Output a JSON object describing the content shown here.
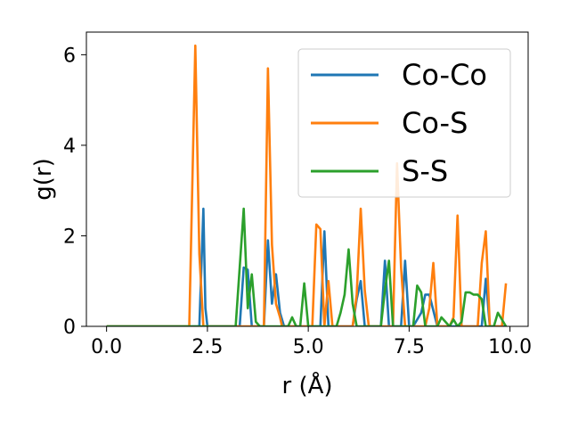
{
  "chart_data": {
    "type": "line",
    "xlabel": "r (Å)",
    "ylabel": "g(r)",
    "xlim": [
      -0.5,
      10.45
    ],
    "ylim": [
      0,
      6.5
    ],
    "xticks": [
      0.0,
      2.5,
      5.0,
      7.5,
      10.0
    ],
    "xtick_labels": [
      "0.0",
      "2.5",
      "5.0",
      "7.5",
      "10.0"
    ],
    "yticks": [
      0,
      2,
      4,
      6
    ],
    "ytick_labels": [
      "0",
      "2",
      "4",
      "6"
    ],
    "grid": false,
    "legend_position": "top-right",
    "series": [
      {
        "name": "Co-Co",
        "color": "#1f77b4",
        "x": [
          0.0,
          2.25,
          2.3,
          2.4,
          2.45,
          2.5,
          3.3,
          3.4,
          3.5,
          3.6,
          3.9,
          4.0,
          4.1,
          4.2,
          4.3,
          4.4,
          5.3,
          5.4,
          5.5,
          6.1,
          6.2,
          6.3,
          6.4,
          6.8,
          6.9,
          7.0,
          7.3,
          7.4,
          7.5,
          7.6,
          7.8,
          7.9,
          8.0,
          8.1,
          8.2,
          9.3,
          9.4,
          9.5,
          9.9
        ],
        "y": [
          0,
          0,
          0,
          2.6,
          0.4,
          0,
          0,
          1.3,
          1.25,
          0,
          0,
          1.9,
          0.5,
          1.15,
          0.3,
          0,
          0,
          2.1,
          0,
          0,
          0.6,
          1.0,
          0,
          0,
          1.45,
          0,
          0,
          1.45,
          0,
          0,
          0.3,
          0.7,
          0.7,
          0.35,
          0,
          0,
          1.05,
          0,
          0
        ]
      },
      {
        "name": "Co-S",
        "color": "#ff7f0e",
        "x": [
          0.0,
          1.95,
          2.05,
          2.2,
          2.3,
          2.4,
          3.7,
          3.9,
          4.0,
          4.1,
          4.2,
          4.3,
          4.35,
          5.1,
          5.2,
          5.3,
          5.4,
          5.5,
          5.6,
          6.1,
          6.2,
          6.3,
          6.4,
          6.5,
          7.1,
          7.2,
          7.3,
          7.4,
          7.9,
          8.0,
          8.1,
          8.2,
          8.5,
          8.6,
          8.7,
          8.8,
          9.2,
          9.3,
          9.4,
          9.5,
          9.8,
          9.9
        ],
        "y": [
          0,
          0,
          0,
          6.2,
          1.6,
          0,
          0,
          0,
          5.7,
          1.8,
          0.5,
          0.2,
          0,
          0,
          2.25,
          2.15,
          0,
          1.0,
          0,
          0,
          0.7,
          2.6,
          0.8,
          0,
          0,
          3.6,
          1.3,
          0,
          0,
          0.4,
          1.4,
          0,
          0,
          0.2,
          2.45,
          0,
          0,
          1.4,
          2.1,
          0,
          0,
          0.95
        ]
      },
      {
        "name": "S-S",
        "color": "#2ca02c",
        "x": [
          0.0,
          3.2,
          3.3,
          3.4,
          3.5,
          3.6,
          3.7,
          3.8,
          4.5,
          4.6,
          4.7,
          4.8,
          4.9,
          5.0,
          5.1,
          5.7,
          5.8,
          5.9,
          6.0,
          6.1,
          6.2,
          6.8,
          6.9,
          7.0,
          7.1,
          7.6,
          7.7,
          7.8,
          7.9,
          8.2,
          8.3,
          8.4,
          8.5,
          8.6,
          8.7,
          8.8,
          8.9,
          9.0,
          9.1,
          9.2,
          9.3,
          9.4,
          9.5,
          9.6,
          9.7,
          9.8,
          9.9
        ],
        "y": [
          0,
          0,
          1.3,
          2.6,
          0.4,
          1.15,
          0.1,
          0,
          0,
          0.2,
          0,
          0,
          0.95,
          0,
          0,
          0,
          0.3,
          0.7,
          1.7,
          0.5,
          0,
          0,
          0.8,
          1.45,
          0,
          0,
          0.9,
          0.75,
          0,
          0,
          0.2,
          0.1,
          0,
          0.15,
          0,
          0.1,
          0.75,
          0.75,
          0.7,
          0.7,
          0.6,
          0,
          0,
          0,
          0.3,
          0.15,
          0
        ]
      }
    ]
  }
}
